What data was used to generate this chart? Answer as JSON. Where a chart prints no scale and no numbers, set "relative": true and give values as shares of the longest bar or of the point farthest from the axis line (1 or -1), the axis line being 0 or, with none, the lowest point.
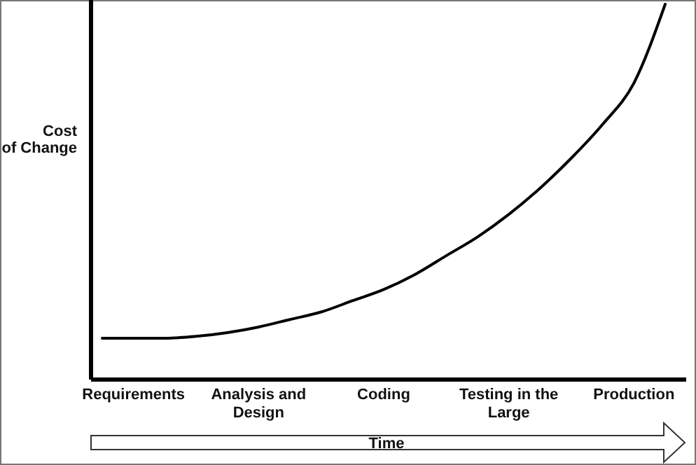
{
  "chart_data": {
    "type": "line",
    "relative": true,
    "ylabel": "Cost of Change",
    "xlabel": "Time",
    "tick_labels": "x",
    "line_style": "solid",
    "categories": [
      null,
      "Requirements",
      null,
      null,
      null,
      "Analysis and Design",
      null,
      null,
      null,
      "Coding",
      null,
      null,
      null,
      "Testing in the Large",
      null,
      null,
      null,
      "Production",
      null
    ],
    "series": [
      {
        "color": "#000000",
        "values": [
          0.11,
          0.11,
          0.11,
          0.115,
          0.125,
          0.14,
          0.16,
          0.18,
          0.21,
          0.24,
          0.28,
          0.33,
          0.38,
          0.44,
          0.51,
          0.59,
          0.68,
          0.79,
          1
        ]
      }
    ]
  }
}
